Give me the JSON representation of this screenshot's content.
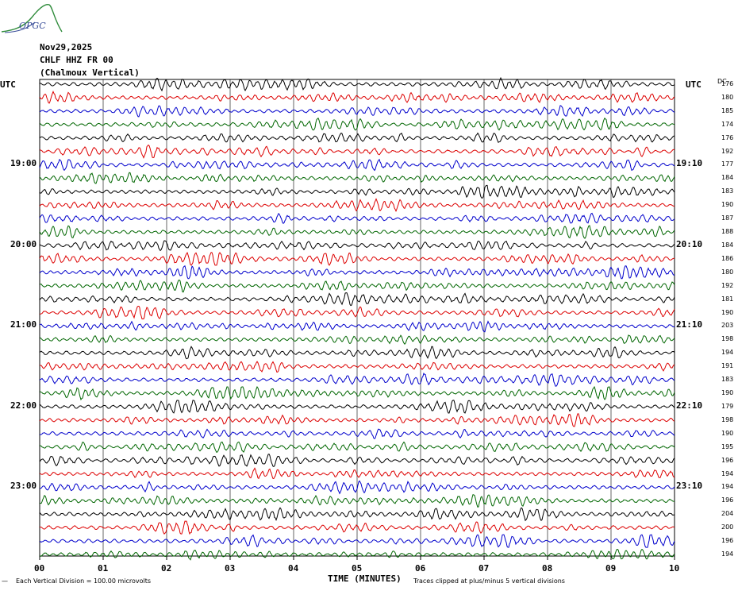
{
  "logo": {
    "text": "OPGC"
  },
  "header": {
    "date": "Nov29,2025",
    "station": "CHLF HHZ FR 00",
    "site": "(Chalmoux Vertical)"
  },
  "axis": {
    "left_label": "UTC",
    "right_label": "UTC",
    "dc_label": "DC",
    "xlabel": "TIME (MINUTES)",
    "x_ticks": [
      "00",
      "01",
      "02",
      "03",
      "04",
      "05",
      "06",
      "07",
      "08",
      "09",
      "10"
    ],
    "left_hours": [
      "19:00",
      "20:00",
      "21:00",
      "22:00",
      "23:00"
    ],
    "right_hours": [
      "19:10",
      "20:10",
      "21:10",
      "22:10",
      "23:10"
    ],
    "footnote_left": "Each Vertical Division = 100.00 microvolts",
    "footnote_right": "Traces clipped at plus/minus 5 vertical divisions",
    "footnote_mark": "—"
  },
  "colors": [
    "#000000",
    "#dd0000",
    "#0000cc",
    "#006600"
  ],
  "chart_data": {
    "type": "line",
    "title": "CHLF HHZ FR 00 (Chalmoux Vertical)",
    "xlabel": "TIME (MINUTES)",
    "ylabel": "UTC",
    "xlim": [
      0,
      10
    ],
    "trace_count": 36,
    "dc_offsets": [
      176,
      180,
      185,
      174,
      176,
      192,
      177,
      184,
      183,
      190,
      187,
      188,
      184,
      186,
      180,
      192,
      181,
      190,
      203,
      198,
      194,
      191,
      183,
      190,
      179,
      198,
      190,
      195,
      196,
      194,
      194,
      196,
      204,
      200,
      196,
      194
    ]
  }
}
